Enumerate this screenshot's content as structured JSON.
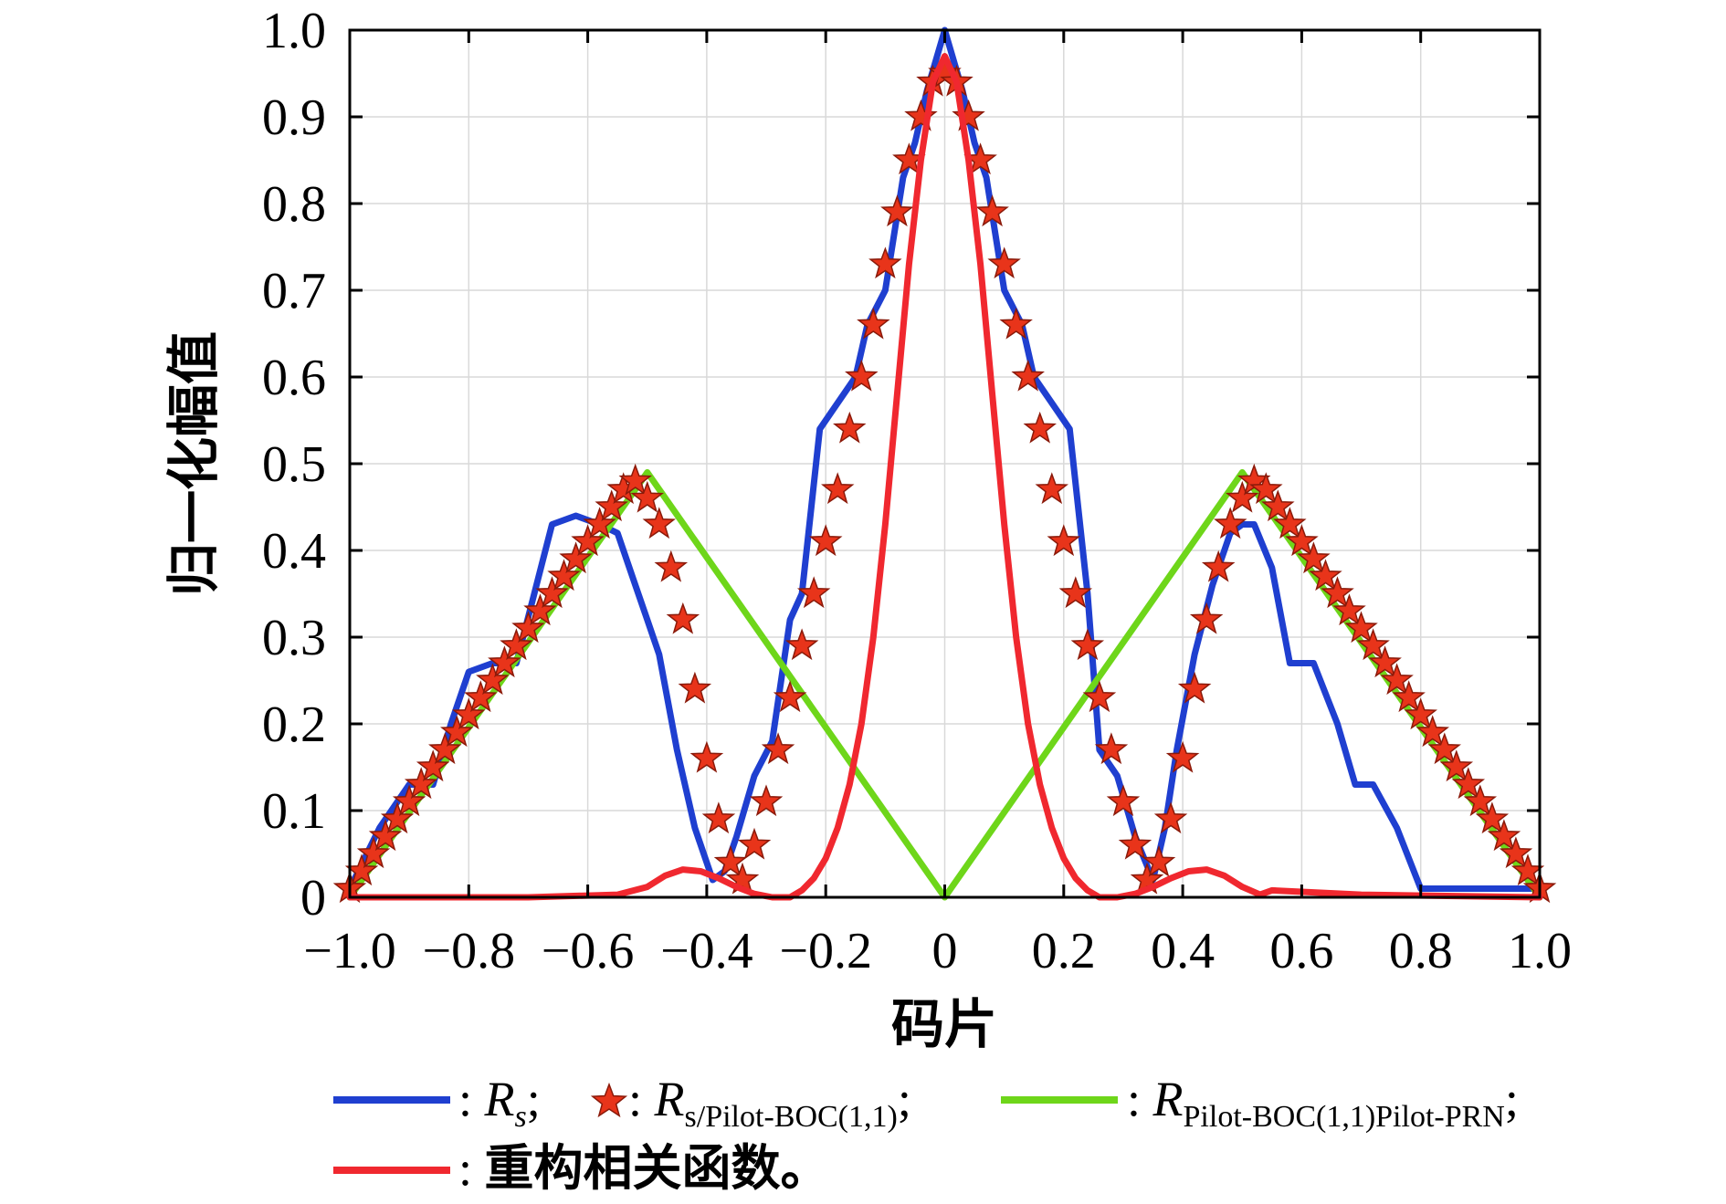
{
  "chart_data": {
    "type": "line",
    "xlabel": "码片",
    "ylabel": "归一化幅值",
    "xlim": [
      -1.0,
      1.0
    ],
    "ylim": [
      0,
      1.0
    ],
    "xticks": [
      -1.0,
      -0.8,
      -0.6,
      -0.4,
      -0.2,
      0,
      0.2,
      0.4,
      0.6,
      0.8,
      1.0
    ],
    "xtick_labels": [
      "−1.0",
      "−0.8",
      "−0.6",
      "−0.4",
      "−0.2",
      "0",
      "0.2",
      "0.4",
      "0.6",
      "0.8",
      "1.0"
    ],
    "yticks": [
      0,
      0.1,
      0.2,
      0.3,
      0.4,
      0.5,
      0.6,
      0.7,
      0.8,
      0.9,
      1.0
    ],
    "ytick_labels": [
      "0",
      "0.1",
      "0.2",
      "0.3",
      "0.4",
      "0.5",
      "0.6",
      "0.7",
      "0.8",
      "0.9",
      "1.0"
    ],
    "grid": true,
    "legend_position": "bottom",
    "series": [
      {
        "key": "rs",
        "legend_main": "R",
        "legend_sub": "s",
        "legend_suffix": ";",
        "color": "#1f3fd0",
        "style": "line",
        "x": [
          -1.0,
          -0.95,
          -0.9,
          -0.86,
          -0.83,
          -0.8,
          -0.76,
          -0.72,
          -0.69,
          -0.66,
          -0.62,
          -0.58,
          -0.55,
          -0.52,
          -0.5,
          -0.48,
          -0.45,
          -0.42,
          -0.39,
          -0.37,
          -0.35,
          -0.32,
          -0.29,
          -0.26,
          -0.24,
          -0.21,
          -0.19,
          -0.15,
          -0.13,
          -0.1,
          -0.07,
          -0.05,
          -0.03,
          0,
          0.03,
          0.05,
          0.07,
          0.1,
          0.13,
          0.15,
          0.19,
          0.21,
          0.24,
          0.26,
          0.29,
          0.32,
          0.35,
          0.37,
          0.39,
          0.42,
          0.45,
          0.48,
          0.5,
          0.52,
          0.55,
          0.58,
          0.62,
          0.66,
          0.69,
          0.72,
          0.76,
          0.8,
          0.83,
          0.86,
          0.9,
          0.95,
          1.0
        ],
        "y": [
          0.01,
          0.08,
          0.13,
          0.13,
          0.2,
          0.26,
          0.27,
          0.27,
          0.35,
          0.43,
          0.44,
          0.43,
          0.42,
          0.36,
          0.32,
          0.28,
          0.17,
          0.08,
          0.02,
          0.03,
          0.07,
          0.14,
          0.18,
          0.32,
          0.35,
          0.54,
          0.56,
          0.6,
          0.66,
          0.7,
          0.83,
          0.87,
          0.93,
          1.0,
          0.93,
          0.87,
          0.83,
          0.7,
          0.66,
          0.6,
          0.56,
          0.54,
          0.35,
          0.17,
          0.14,
          0.07,
          0.02,
          0.08,
          0.17,
          0.28,
          0.36,
          0.42,
          0.43,
          0.43,
          0.38,
          0.27,
          0.27,
          0.2,
          0.13,
          0.13,
          0.08,
          0.01,
          0.01,
          0.01,
          0.01,
          0.01,
          0.01
        ]
      },
      {
        "key": "rs_pilot",
        "legend_main": "R",
        "legend_sub": "s/Pilot-BOC(1,1)",
        "legend_suffix": ";",
        "color": "#e8341a",
        "edge_color": "#8a1a0a",
        "style": "star",
        "x": [
          -1.0,
          -0.98,
          -0.96,
          -0.94,
          -0.92,
          -0.9,
          -0.88,
          -0.86,
          -0.84,
          -0.82,
          -0.8,
          -0.78,
          -0.76,
          -0.74,
          -0.72,
          -0.7,
          -0.68,
          -0.66,
          -0.64,
          -0.62,
          -0.6,
          -0.58,
          -0.56,
          -0.54,
          -0.52,
          -0.5,
          -0.48,
          -0.46,
          -0.44,
          -0.42,
          -0.4,
          -0.38,
          -0.36,
          -0.34,
          -0.32,
          -0.3,
          -0.28,
          -0.26,
          -0.24,
          -0.22,
          -0.2,
          -0.18,
          -0.16,
          -0.14,
          -0.12,
          -0.1,
          -0.08,
          -0.06,
          -0.04,
          -0.02,
          0,
          0.02,
          0.04,
          0.06,
          0.08,
          0.1,
          0.12,
          0.14,
          0.16,
          0.18,
          0.2,
          0.22,
          0.24,
          0.26,
          0.28,
          0.3,
          0.32,
          0.34,
          0.36,
          0.38,
          0.4,
          0.42,
          0.44,
          0.46,
          0.48,
          0.5,
          0.52,
          0.54,
          0.56,
          0.58,
          0.6,
          0.62,
          0.64,
          0.66,
          0.68,
          0.7,
          0.72,
          0.74,
          0.76,
          0.78,
          0.8,
          0.82,
          0.84,
          0.86,
          0.88,
          0.9,
          0.92,
          0.94,
          0.96,
          0.98,
          1.0
        ],
        "y": [
          0.01,
          0.03,
          0.05,
          0.07,
          0.09,
          0.11,
          0.13,
          0.15,
          0.17,
          0.19,
          0.21,
          0.23,
          0.25,
          0.27,
          0.29,
          0.31,
          0.33,
          0.35,
          0.37,
          0.39,
          0.41,
          0.43,
          0.45,
          0.47,
          0.48,
          0.46,
          0.43,
          0.38,
          0.32,
          0.24,
          0.16,
          0.09,
          0.04,
          0.02,
          0.06,
          0.11,
          0.17,
          0.23,
          0.29,
          0.35,
          0.41,
          0.47,
          0.54,
          0.6,
          0.66,
          0.73,
          0.79,
          0.85,
          0.9,
          0.94,
          0.95,
          0.94,
          0.9,
          0.85,
          0.79,
          0.73,
          0.66,
          0.6,
          0.54,
          0.47,
          0.41,
          0.35,
          0.29,
          0.23,
          0.17,
          0.11,
          0.06,
          0.02,
          0.04,
          0.09,
          0.16,
          0.24,
          0.32,
          0.38,
          0.43,
          0.46,
          0.48,
          0.47,
          0.45,
          0.43,
          0.41,
          0.39,
          0.37,
          0.35,
          0.33,
          0.31,
          0.29,
          0.27,
          0.25,
          0.23,
          0.21,
          0.19,
          0.17,
          0.15,
          0.13,
          0.11,
          0.09,
          0.07,
          0.05,
          0.03,
          0.01
        ]
      },
      {
        "key": "rpilot_prn",
        "legend_main": "R",
        "legend_sub": "Pilot-BOC(1,1)Pilot-PRN",
        "legend_suffix": ";",
        "color": "#6ed61a",
        "style": "line",
        "x": [
          -1.0,
          -0.5,
          0.0,
          0.5,
          1.0
        ],
        "y": [
          0.0,
          0.49,
          0.0,
          0.49,
          0.0
        ]
      },
      {
        "key": "reconstructed",
        "legend_cn": "重构相关函数。",
        "color": "#f0282f",
        "style": "line",
        "x": [
          -1.0,
          -0.7,
          -0.55,
          -0.5,
          -0.47,
          -0.44,
          -0.41,
          -0.38,
          -0.35,
          -0.32,
          -0.29,
          -0.26,
          -0.24,
          -0.22,
          -0.2,
          -0.18,
          -0.16,
          -0.14,
          -0.12,
          -0.1,
          -0.08,
          -0.06,
          -0.04,
          -0.02,
          0,
          0.02,
          0.04,
          0.06,
          0.08,
          0.1,
          0.12,
          0.14,
          0.16,
          0.18,
          0.2,
          0.22,
          0.24,
          0.26,
          0.29,
          0.32,
          0.35,
          0.38,
          0.41,
          0.44,
          0.47,
          0.5,
          0.53,
          0.55,
          0.7,
          1.0
        ],
        "y": [
          0.0,
          0.0,
          0.003,
          0.012,
          0.025,
          0.032,
          0.03,
          0.022,
          0.012,
          0.004,
          0.0,
          0.0,
          0.008,
          0.022,
          0.045,
          0.08,
          0.13,
          0.2,
          0.3,
          0.43,
          0.58,
          0.73,
          0.85,
          0.94,
          0.97,
          0.94,
          0.85,
          0.73,
          0.58,
          0.43,
          0.3,
          0.2,
          0.13,
          0.08,
          0.045,
          0.022,
          0.008,
          0.0,
          0.0,
          0.004,
          0.012,
          0.022,
          0.03,
          0.032,
          0.025,
          0.012,
          0.003,
          0.008,
          0.003,
          0.0
        ]
      }
    ]
  }
}
